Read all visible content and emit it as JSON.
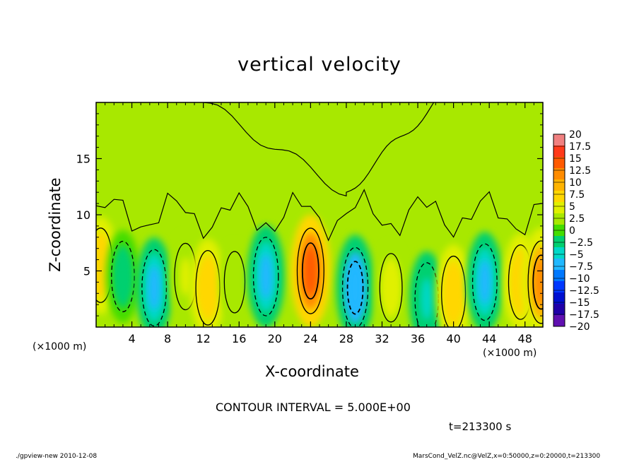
{
  "chart_data": {
    "type": "heatmap",
    "title": "vertical velocity",
    "xlabel": "X-coordinate",
    "ylabel": "Z-coordinate",
    "x_unit_note_left": "(×1000 m)",
    "x_unit_note_right": "(×1000 m)",
    "xlim": [
      0,
      50
    ],
    "ylim": [
      0,
      20
    ],
    "x_ticks": [
      4,
      8,
      12,
      16,
      20,
      24,
      28,
      32,
      36,
      40,
      44,
      48
    ],
    "y_ticks": [
      5,
      10,
      15
    ],
    "colorbar": {
      "levels": [
        20,
        17.5,
        15,
        12.5,
        10,
        7.5,
        5,
        2.5,
        0,
        -2.5,
        -5,
        -7.5,
        -10,
        -12.5,
        -15,
        -17.5,
        -20
      ],
      "labels": [
        "20",
        "17.5",
        "15",
        "12.5",
        "10",
        "7.5",
        "5",
        "2.5",
        "0",
        "−2.5",
        "−5",
        "−7.5",
        "−10",
        "−12.5",
        "−15",
        "−17.5",
        "−20"
      ],
      "colors": [
        "#f08080",
        "#ff3a1a",
        "#ff5a00",
        "#ff8c00",
        "#ffb400",
        "#ffd700",
        "#e0f000",
        "#a8e800",
        "#44dd00",
        "#00d070",
        "#00d8c8",
        "#20b8ff",
        "#0078ff",
        "#0038ff",
        "#0010d0",
        "#2000a8",
        "#6010b0"
      ]
    },
    "features": [
      {
        "x": 0.5,
        "z": 5.5,
        "w": 7.0
      },
      {
        "x": 3.0,
        "z": 4.5,
        "w": -5.0
      },
      {
        "x": 6.5,
        "z": 3.5,
        "w": -8.0
      },
      {
        "x": 10.0,
        "z": 4.5,
        "w": 3.0
      },
      {
        "x": 12.5,
        "z": 3.5,
        "w": 7.0
      },
      {
        "x": 15.5,
        "z": 4.0,
        "w": 0.5
      },
      {
        "x": 19.0,
        "z": 4.5,
        "w": -9.0
      },
      {
        "x": 24.0,
        "z": 5.0,
        "w": 12.5
      },
      {
        "x": 29.0,
        "z": 3.5,
        "w": -10.0
      },
      {
        "x": 33.0,
        "z": 3.5,
        "w": 4.0
      },
      {
        "x": 37.0,
        "z": 2.5,
        "w": -6.0
      },
      {
        "x": 40.0,
        "z": 3.0,
        "w": 7.0
      },
      {
        "x": 43.5,
        "z": 4.0,
        "w": -8.0
      },
      {
        "x": 47.5,
        "z": 4.0,
        "w": 7.0
      },
      {
        "x": 49.8,
        "z": 4.0,
        "w": 11.0
      }
    ]
  },
  "notes": {
    "contour_interval": "CONTOUR INTERVAL = 5.000E+00",
    "time": "t=213300 s",
    "footer_left": "./gpview-new  2010-12-08",
    "footer_right": "MarsCond_VelZ.nc@VelZ,x=0:50000,z=0:20000,t=213300"
  }
}
